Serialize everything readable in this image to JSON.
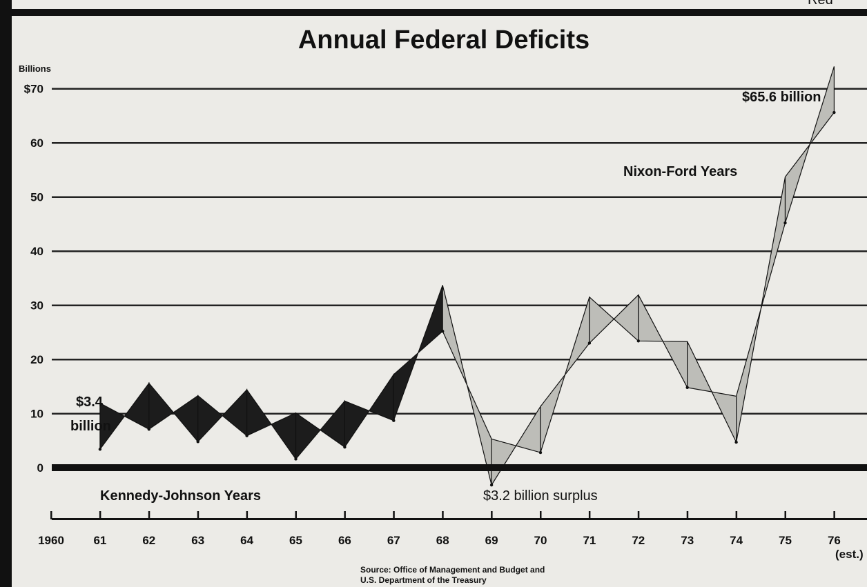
{
  "chart_data": {
    "type": "area",
    "title": "Annual Federal Deficits",
    "ylabel": "Billions",
    "ylim": [
      -10,
      70
    ],
    "y_ticks": [
      "$70",
      "60",
      "50",
      "40",
      "30",
      "20",
      "10",
      "0"
    ],
    "x_ticks": [
      "1960",
      "61",
      "62",
      "63",
      "64",
      "65",
      "66",
      "67",
      "68",
      "69",
      "70",
      "71",
      "72",
      "73",
      "74",
      "75",
      "76"
    ],
    "x_tick_note": "(est.)",
    "x": [
      1961,
      1962,
      1963,
      1964,
      1965,
      1966,
      1967,
      1968,
      1969,
      1970,
      1971,
      1972,
      1973,
      1974,
      1975,
      1976
    ],
    "values": [
      3.4,
      7.1,
      4.8,
      5.9,
      1.6,
      3.8,
      8.7,
      25.2,
      -3.2,
      2.8,
      23.0,
      23.4,
      14.8,
      4.7,
      45.2,
      65.6
    ],
    "eras": [
      {
        "label": "Kennedy-Johnson Years",
        "color": "#1c1c1c",
        "from": 1961,
        "to": 1968
      },
      {
        "label": "Nixon-Ford Years",
        "color": "#bdbdb8",
        "from": 1968,
        "to": 1976
      }
    ],
    "annotations": {
      "start_line1": "$3.4",
      "start_line2": "billion",
      "surplus": "$3.2 billion surplus",
      "peak": "$65.6 billion"
    },
    "source_line1": "Source: Office of Management and Budget and",
    "source_line2": "U.S. Department of the Treasury",
    "corner_text": "Red"
  }
}
